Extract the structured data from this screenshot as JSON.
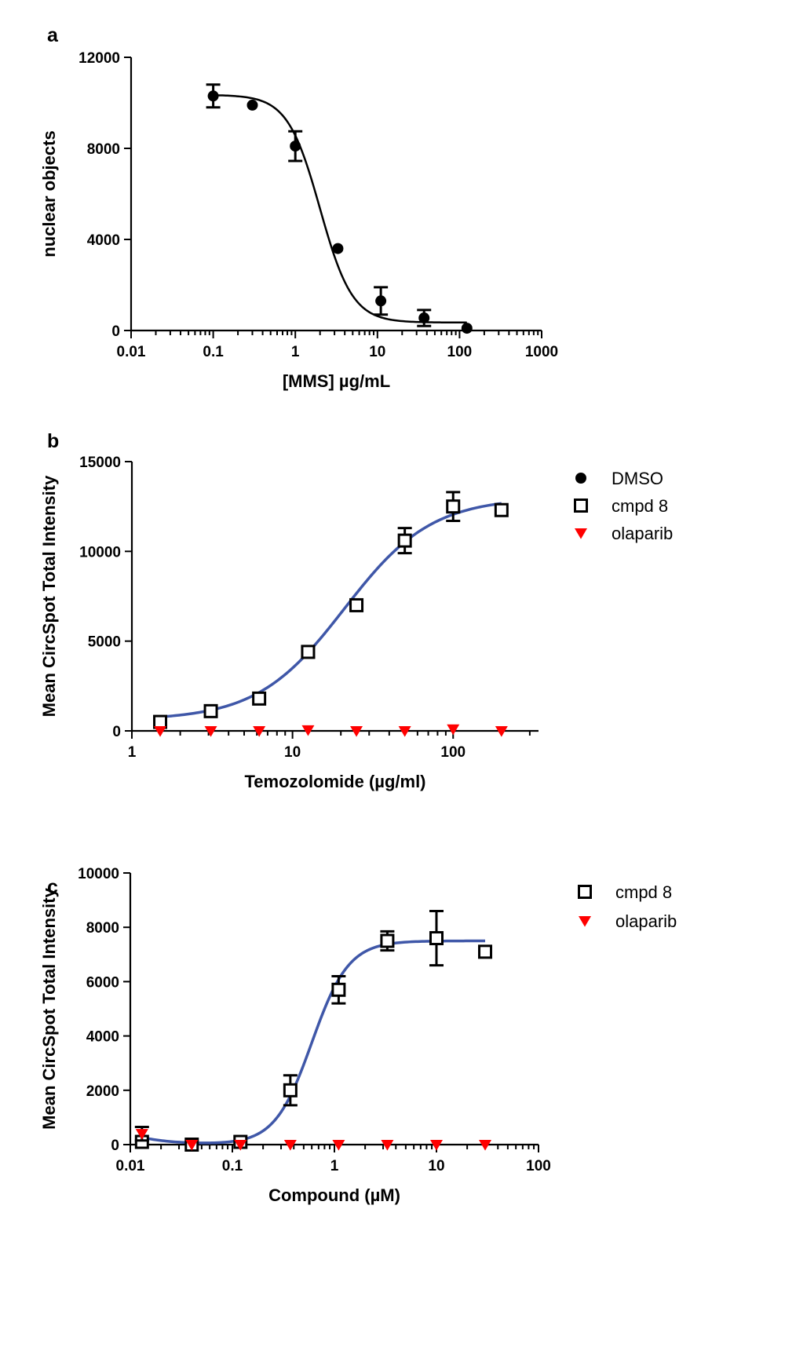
{
  "chart_data": [
    {
      "panel": "a",
      "type": "scatter",
      "xscale": "log",
      "xlim": [
        0.01,
        1000
      ],
      "ylim": [
        0,
        12000
      ],
      "xticks": [
        "0.01",
        "0.1",
        "1",
        "10",
        "100",
        "1000"
      ],
      "yticks": [
        "0",
        "4000",
        "8000",
        "12000"
      ],
      "xlabel": "[MMS] µg/mL",
      "ylabel": "nuclear objects",
      "legend": "none",
      "series": [
        {
          "marker": "filled-circle",
          "color": "#000000",
          "x": [
            0.1,
            0.3,
            1,
            3.3,
            11,
            37,
            123
          ],
          "y": [
            10300,
            9900,
            8100,
            3600,
            1300,
            550,
            100
          ],
          "err": [
            500,
            0,
            650,
            0,
            600,
            350,
            0
          ],
          "fit": {
            "bottom": 350,
            "top": 10350,
            "ec50": 2.0,
            "hill": 2.2
          }
        }
      ]
    },
    {
      "panel": "b",
      "type": "scatter",
      "xscale": "log",
      "xlim": [
        1,
        340
      ],
      "ylim": [
        0,
        15000
      ],
      "xticks": [
        "1",
        "10",
        "100"
      ],
      "yticks": [
        "0",
        "5000",
        "10000",
        "15000"
      ],
      "xlabel": "Temozolomide (µg/ml)",
      "ylabel": "Mean CircSpot Total Intensity",
      "legend": "right",
      "series": [
        {
          "name": "DMSO",
          "marker": "filled-circle",
          "color": "#000000",
          "x": [],
          "y": [],
          "err": []
        },
        {
          "name": "cmpd 8",
          "marker": "open-square",
          "color": "#000000",
          "fit_color": "#3f57a8",
          "x": [
            1.5,
            3.1,
            6.2,
            12.5,
            25,
            50,
            100,
            200
          ],
          "y": [
            500,
            1100,
            1800,
            4400,
            7000,
            10600,
            12500,
            12300
          ],
          "err": [
            0,
            0,
            0,
            300,
            0,
            700,
            800,
            0
          ],
          "fit": {
            "bottom": 600,
            "top": 13000,
            "ec50": 21,
            "hill": 1.6
          }
        },
        {
          "name": "olaparib",
          "marker": "filled-triangle-down",
          "color": "#ff0000",
          "x": [
            1.5,
            3.1,
            6.2,
            12.5,
            25,
            50,
            100,
            200
          ],
          "y": [
            0,
            0,
            0,
            50,
            0,
            0,
            100,
            0
          ],
          "err": [
            0,
            0,
            0,
            0,
            0,
            0,
            0,
            0
          ]
        }
      ]
    },
    {
      "panel": "c",
      "type": "scatter",
      "xscale": "log",
      "xlim": [
        0.01,
        100
      ],
      "ylim": [
        0,
        10000
      ],
      "xticks": [
        "0.01",
        "0.1",
        "1",
        "10",
        "100"
      ],
      "yticks": [
        "0",
        "2000",
        "4000",
        "6000",
        "8000",
        "10000"
      ],
      "xlabel": "Compound (µM)",
      "ylabel": "Mean CircSpot Total Intensity",
      "legend": "right",
      "series": [
        {
          "name": "cmpd 8",
          "marker": "open-square",
          "color": "#000000",
          "fit_color": "#3f57a8",
          "x": [
            0.013,
            0.04,
            0.12,
            0.37,
            1.1,
            3.3,
            10,
            30
          ],
          "y": [
            100,
            0,
            100,
            2000,
            5700,
            7500,
            7600,
            7100
          ],
          "err": [
            0,
            0,
            0,
            550,
            500,
            350,
            1000,
            0
          ],
          "fit": {
            "bottom": 0,
            "top": 7500,
            "ec50": 0.6,
            "hill": 2.4,
            "low_rise": 300,
            "low_ref": 0.012
          }
        },
        {
          "name": "olaparib",
          "marker": "filled-triangle-down",
          "color": "#ff0000",
          "x": [
            0.013,
            0.04,
            0.12,
            0.37,
            1.1,
            3.3,
            10,
            30
          ],
          "y": [
            400,
            0,
            0,
            0,
            0,
            0,
            0,
            0
          ],
          "err": [
            250,
            0,
            0,
            0,
            0,
            0,
            0,
            0
          ]
        }
      ]
    }
  ]
}
